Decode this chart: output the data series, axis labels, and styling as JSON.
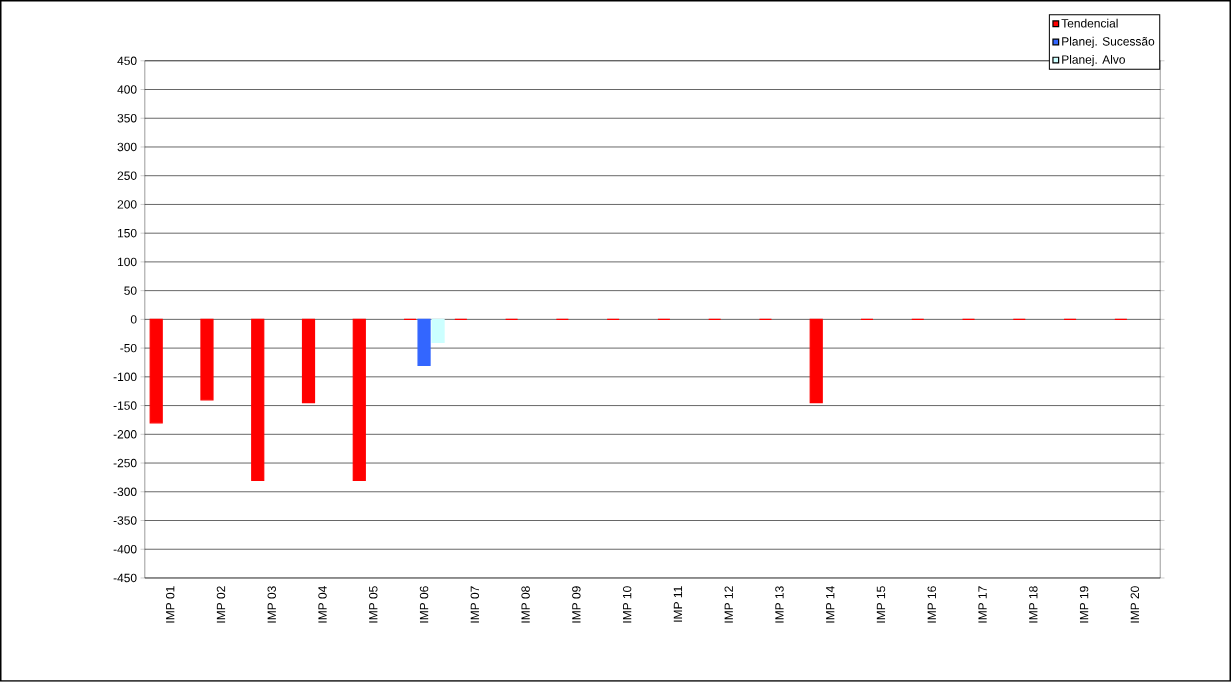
{
  "chart_data": {
    "type": "bar",
    "categories": [
      "IMP 01",
      "IMP 02",
      "IMP 03",
      "IMP 04",
      "IMP 05",
      "IMP 06",
      "IMP 07",
      "IMP 08",
      "IMP 09",
      "IMP 10",
      "IMP 11",
      "IMP 12",
      "IMP 13",
      "IMP 14",
      "IMP 15",
      "IMP 16",
      "IMP 17",
      "IMP 18",
      "IMP 19",
      "IMP 20"
    ],
    "series": [
      {
        "name": "Tendencial",
        "color": "#ff0000",
        "values": [
          -180,
          -140,
          -280,
          -145,
          -280,
          0,
          0,
          0,
          0,
          0,
          0,
          0,
          0,
          -145,
          0,
          0,
          0,
          0,
          0,
          0
        ]
      },
      {
        "name": "Planej. Sucessão",
        "color": "#3366ff",
        "values": [
          null,
          null,
          null,
          null,
          null,
          -80,
          null,
          null,
          null,
          null,
          null,
          null,
          null,
          null,
          null,
          null,
          null,
          null,
          null,
          null
        ]
      },
      {
        "name": "Planej. Alvo",
        "color": "#ccffff",
        "values": [
          null,
          null,
          null,
          null,
          null,
          -40,
          null,
          null,
          null,
          null,
          null,
          null,
          null,
          null,
          null,
          null,
          null,
          null,
          null,
          null
        ]
      }
    ],
    "ylim": [
      -450,
      450
    ],
    "yticks": [
      -450,
      -400,
      -350,
      -300,
      -250,
      -200,
      -150,
      -100,
      -50,
      0,
      50,
      100,
      150,
      200,
      250,
      300,
      350,
      400,
      450
    ],
    "grid": "y",
    "legend": "top right"
  }
}
